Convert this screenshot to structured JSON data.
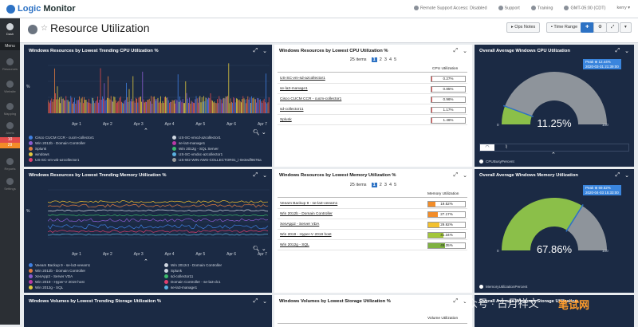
{
  "app": {
    "brand": "LogicMonitor",
    "brand_prefix": "Logic",
    "brand_suffix": "Monitor"
  },
  "topbar": {
    "items": [
      "Remote Support Access: Disabled",
      "Support",
      "Training",
      "GMT-05:00 (CDT)",
      "kerry"
    ]
  },
  "sidebar": {
    "menu_label": "Menu",
    "items": [
      {
        "label": "Dash"
      },
      {
        "label": "Resources"
      },
      {
        "label": "Website"
      },
      {
        "label": "Mapping"
      },
      {
        "label": "Alerts"
      },
      {
        "label": "Reports"
      },
      {
        "label": "Settings"
      }
    ],
    "alert_counts": [
      "10",
      "29"
    ]
  },
  "header": {
    "title": "Resource Utilization",
    "ops_notes": "Ops Notes",
    "time_range": "Time Range"
  },
  "colors": {
    "navy": "#1b2a44",
    "accent": "#2d72c4",
    "gauge_green": "#8bbf49",
    "gauge_grey": "#8e949b"
  },
  "widgets": {
    "cpu_trend": {
      "title": "Windows Resources by Lowest Trending CPU Utilization %",
      "y_label": "%",
      "x_ticks": [
        "Apr 1",
        "Apr 2",
        "Apr 3",
        "Apr 4",
        "Apr 5",
        "Apr 6",
        "Apr 7"
      ],
      "legend": [
        {
          "name": "Cisco CUCM CCR - cucm-collector1",
          "color": "#3f7fe0"
        },
        {
          "name": "US-SC-vmcd-azcollector1",
          "color": "#cfd6e0"
        },
        {
          "name": "Win 2012b - Domain Controller",
          "color": "#8a5cd0"
        },
        {
          "name": "se-la3-manage1",
          "color": "#b93aa5"
        },
        {
          "name": "Splunk",
          "color": "#e07b3f"
        },
        {
          "name": "Win 2012g - SQL Server",
          "color": "#3ab96b"
        },
        {
          "name": "windows",
          "color": "#e0c83f"
        },
        {
          "name": "US-SC-vmdxc-azcollector1",
          "color": "#5ab0e0"
        },
        {
          "name": "US-SC-vm-wb-azcollector1",
          "color": "#e03f6e"
        },
        {
          "name": "US-W2-WIN-AWS-COLLECTOR01_i-0e3edf9676a",
          "color": "#9b9b9b"
        }
      ]
    },
    "cpu_lowest": {
      "title": "Windows Resources by Lowest CPU Utilization %",
      "items_label": "25 items",
      "pages": [
        "1",
        "2",
        "3",
        "4",
        "5"
      ],
      "current_page": "1",
      "column": "CPU Utilization",
      "rows": [
        {
          "name": "US-SC-vm-sd-azcollector1",
          "value": "0.27%",
          "pct": 0.27,
          "color": "#e24b4b"
        },
        {
          "name": "se-la3-manage1",
          "value": "0.85%",
          "pct": 0.85,
          "color": "#e24b4b"
        },
        {
          "name": "Cisco CUCM CCR - cucm-collector1",
          "value": "0.96%",
          "pct": 0.96,
          "color": "#e24b4b"
        },
        {
          "name": "sd-collector11",
          "value": "1.17%",
          "pct": 1.17,
          "color": "#e24b4b"
        },
        {
          "name": "Splunk",
          "value": "1.46%",
          "pct": 1.46,
          "color": "#e24b4b"
        }
      ]
    },
    "cpu_avg": {
      "title": "Overall Average Windows CPU Utilization",
      "value": "11.25%",
      "pct": 11.25,
      "min": "0",
      "max": "100",
      "peak_label": "Peak ⊕ 12.44%",
      "peak_time": "2020-03-31 21:39:00",
      "legend": "CPUBusyPercent"
    },
    "mem_trend": {
      "title": "Windows Resources by Lowest Trending Memory Utilization %",
      "y_label": "%",
      "x_ticks": [
        "Apr 1",
        "Apr 2",
        "Apr 3",
        "Apr 4",
        "Apr 5",
        "Apr 6",
        "Apr 7"
      ],
      "legend": [
        {
          "name": "Veeam Backup 9 - se-la3-veeam1",
          "color": "#3f7fe0"
        },
        {
          "name": "Win 2012ct - Domain Controller",
          "color": "#cfd6e0"
        },
        {
          "name": "Win 2012b - Domain Controller",
          "color": "#e07b3f"
        },
        {
          "name": "Splunk",
          "color": "#cfd6e0"
        },
        {
          "name": "XenApp2 - Server VDA",
          "color": "#8a5cd0"
        },
        {
          "name": "sd-collector11",
          "color": "#3ab96b"
        },
        {
          "name": "Win 2019 - Hyper-V 2019 host",
          "color": "#b93aa5"
        },
        {
          "name": "Domain Controller - se-la3-dc1",
          "color": "#e03f6e"
        },
        {
          "name": "Win 2012g - SQL",
          "color": "#e0c83f"
        },
        {
          "name": "se-la3-manage1",
          "color": "#5ab0e0"
        }
      ]
    },
    "mem_lowest": {
      "title": "Windows Resources by Lowest Memory Utilization %",
      "items_label": "25 items",
      "pages": [
        "1",
        "2",
        "3",
        "4",
        "5"
      ],
      "current_page": "1",
      "column": "Memory Utilization",
      "rows": [
        {
          "name": "Veeam Backup 9 - se-la3-veeam1",
          "value": "19.52%",
          "pct": 19.52,
          "color": "#f28c28"
        },
        {
          "name": "Win 2012b - Domain Controller",
          "value": "27.17%",
          "pct": 27.17,
          "color": "#f28c28"
        },
        {
          "name": "XenApp2 - Server VDA",
          "value": "29.92%",
          "pct": 29.92,
          "color": "#f2c12e"
        },
        {
          "name": "Win 2019 - Hyper-V 2019 host",
          "value": "41.34%",
          "pct": 41.34,
          "color": "#a3c63a"
        },
        {
          "name": "Win 2012g - SQL",
          "value": "45.35%",
          "pct": 45.35,
          "color": "#7fb241"
        }
      ]
    },
    "mem_avg": {
      "title": "Overall Average Windows Memory Utilization",
      "value": "67.86%",
      "pct": 67.86,
      "min": "0",
      "max": "100",
      "peak_label": "Peak ⊕ 69.52%",
      "peak_time": "2020-04-03 15:33:00",
      "legend": "MemoryUtilizationPercent"
    },
    "storage_trend": {
      "title": "Windows Volumes by Lowest Trending Storage Utilization %"
    },
    "storage_lowest": {
      "title": "Windows Volumes by Lowest Storage Utilization %",
      "column": "Volume Utilization"
    },
    "storage_avg": {
      "title": "Overall Average Windows Storage Utilization"
    }
  },
  "watermark": {
    "text": "公众号 · 古月祥文",
    "site": "笔试网"
  }
}
